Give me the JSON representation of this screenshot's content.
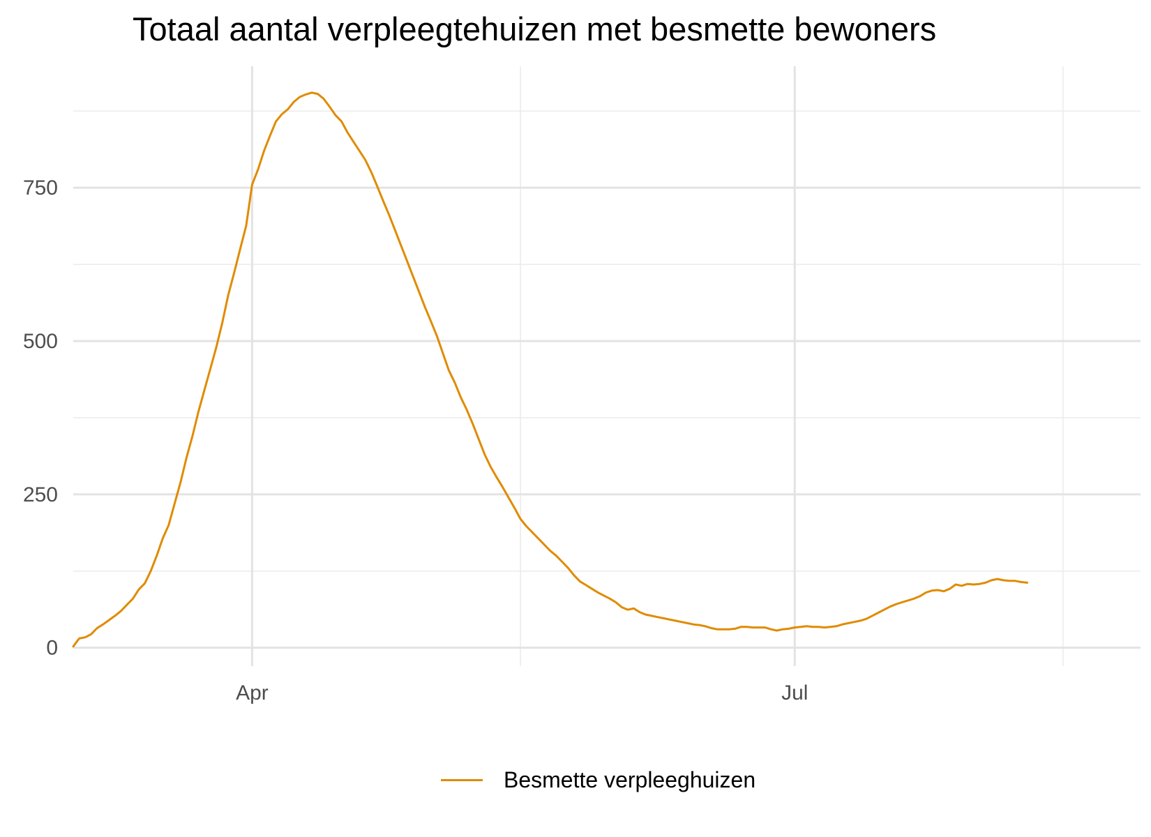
{
  "chart_data": {
    "type": "line",
    "title": "Totaal aantal verpleegtehuizen met besmette bewoners",
    "xlabel": "",
    "ylabel": "",
    "ylim": [
      -30,
      948
    ],
    "x_date_range": [
      "2020-03-02",
      "2020-08-28"
    ],
    "y_ticks": [
      0,
      250,
      500,
      750
    ],
    "y_minor_ticks": [
      125,
      375,
      625,
      875
    ],
    "x_ticks": [
      {
        "date": "2020-04-01",
        "label": "Apr"
      },
      {
        "date": "2020-07-01",
        "label": "Jul"
      }
    ],
    "x_minor_ticks": [
      "2020-05-16",
      "2020-08-15"
    ],
    "grid": true,
    "legend": "bottom",
    "series": [
      {
        "name": "Besmette verpleeghuizen",
        "color": "#E08B00",
        "points": [
          [
            "2020-03-02",
            2
          ],
          [
            "2020-03-03",
            15
          ],
          [
            "2020-03-04",
            17
          ],
          [
            "2020-03-05",
            22
          ],
          [
            "2020-03-06",
            32
          ],
          [
            "2020-03-07",
            38
          ],
          [
            "2020-03-08",
            45
          ],
          [
            "2020-03-09",
            52
          ],
          [
            "2020-03-10",
            60
          ],
          [
            "2020-03-11",
            70
          ],
          [
            "2020-03-12",
            80
          ],
          [
            "2020-03-13",
            95
          ],
          [
            "2020-03-14",
            105
          ],
          [
            "2020-03-15",
            125
          ],
          [
            "2020-03-16",
            150
          ],
          [
            "2020-03-17",
            178
          ],
          [
            "2020-03-18",
            200
          ],
          [
            "2020-03-19",
            235
          ],
          [
            "2020-03-20",
            270
          ],
          [
            "2020-03-21",
            310
          ],
          [
            "2020-03-22",
            345
          ],
          [
            "2020-03-23",
            385
          ],
          [
            "2020-03-24",
            420
          ],
          [
            "2020-03-25",
            455
          ],
          [
            "2020-03-26",
            490
          ],
          [
            "2020-03-27",
            530
          ],
          [
            "2020-03-28",
            575
          ],
          [
            "2020-03-29",
            612
          ],
          [
            "2020-03-30",
            650
          ],
          [
            "2020-03-31",
            688
          ],
          [
            "2020-04-01",
            755
          ],
          [
            "2020-04-02",
            780
          ],
          [
            "2020-04-03",
            810
          ],
          [
            "2020-04-04",
            835
          ],
          [
            "2020-04-05",
            858
          ],
          [
            "2020-04-06",
            870
          ],
          [
            "2020-04-07",
            878
          ],
          [
            "2020-04-08",
            890
          ],
          [
            "2020-04-09",
            898
          ],
          [
            "2020-04-10",
            902
          ],
          [
            "2020-04-11",
            905
          ],
          [
            "2020-04-12",
            903
          ],
          [
            "2020-04-13",
            895
          ],
          [
            "2020-04-14",
            882
          ],
          [
            "2020-04-15",
            868
          ],
          [
            "2020-04-16",
            858
          ],
          [
            "2020-04-17",
            840
          ],
          [
            "2020-04-18",
            825
          ],
          [
            "2020-04-19",
            810
          ],
          [
            "2020-04-20",
            795
          ],
          [
            "2020-04-21",
            775
          ],
          [
            "2020-04-22",
            752
          ],
          [
            "2020-04-23",
            728
          ],
          [
            "2020-04-24",
            705
          ],
          [
            "2020-04-25",
            680
          ],
          [
            "2020-04-26",
            655
          ],
          [
            "2020-04-27",
            630
          ],
          [
            "2020-04-28",
            605
          ],
          [
            "2020-04-29",
            580
          ],
          [
            "2020-04-30",
            555
          ],
          [
            "2020-05-01",
            532
          ],
          [
            "2020-05-02",
            508
          ],
          [
            "2020-05-03",
            480
          ],
          [
            "2020-05-04",
            452
          ],
          [
            "2020-05-05",
            432
          ],
          [
            "2020-05-06",
            408
          ],
          [
            "2020-05-07",
            388
          ],
          [
            "2020-05-08",
            365
          ],
          [
            "2020-05-09",
            340
          ],
          [
            "2020-05-10",
            315
          ],
          [
            "2020-05-11",
            295
          ],
          [
            "2020-05-12",
            278
          ],
          [
            "2020-05-13",
            262
          ],
          [
            "2020-05-14",
            245
          ],
          [
            "2020-05-15",
            228
          ],
          [
            "2020-05-16",
            210
          ],
          [
            "2020-05-17",
            198
          ],
          [
            "2020-05-18",
            188
          ],
          [
            "2020-05-19",
            178
          ],
          [
            "2020-05-20",
            168
          ],
          [
            "2020-05-21",
            158
          ],
          [
            "2020-05-22",
            150
          ],
          [
            "2020-05-23",
            140
          ],
          [
            "2020-05-24",
            130
          ],
          [
            "2020-05-25",
            118
          ],
          [
            "2020-05-26",
            108
          ],
          [
            "2020-05-27",
            102
          ],
          [
            "2020-05-28",
            96
          ],
          [
            "2020-05-29",
            90
          ],
          [
            "2020-05-30",
            85
          ],
          [
            "2020-05-31",
            80
          ],
          [
            "2020-06-01",
            74
          ],
          [
            "2020-06-02",
            66
          ],
          [
            "2020-06-03",
            62
          ],
          [
            "2020-06-04",
            64
          ],
          [
            "2020-06-05",
            58
          ],
          [
            "2020-06-06",
            54
          ],
          [
            "2020-06-07",
            52
          ],
          [
            "2020-06-08",
            50
          ],
          [
            "2020-06-09",
            48
          ],
          [
            "2020-06-10",
            46
          ],
          [
            "2020-06-11",
            44
          ],
          [
            "2020-06-12",
            42
          ],
          [
            "2020-06-13",
            40
          ],
          [
            "2020-06-14",
            38
          ],
          [
            "2020-06-15",
            37
          ],
          [
            "2020-06-16",
            35
          ],
          [
            "2020-06-17",
            32
          ],
          [
            "2020-06-18",
            30
          ],
          [
            "2020-06-19",
            30
          ],
          [
            "2020-06-20",
            30
          ],
          [
            "2020-06-21",
            31
          ],
          [
            "2020-06-22",
            34
          ],
          [
            "2020-06-23",
            34
          ],
          [
            "2020-06-24",
            33
          ],
          [
            "2020-06-25",
            33
          ],
          [
            "2020-06-26",
            33
          ],
          [
            "2020-06-27",
            30
          ],
          [
            "2020-06-28",
            28
          ],
          [
            "2020-06-29",
            30
          ],
          [
            "2020-06-30",
            31
          ],
          [
            "2020-07-01",
            33
          ],
          [
            "2020-07-02",
            34
          ],
          [
            "2020-07-03",
            35
          ],
          [
            "2020-07-04",
            34
          ],
          [
            "2020-07-05",
            34
          ],
          [
            "2020-07-06",
            33
          ],
          [
            "2020-07-07",
            34
          ],
          [
            "2020-07-08",
            35
          ],
          [
            "2020-07-09",
            38
          ],
          [
            "2020-07-10",
            40
          ],
          [
            "2020-07-11",
            42
          ],
          [
            "2020-07-12",
            44
          ],
          [
            "2020-07-13",
            47
          ],
          [
            "2020-07-14",
            52
          ],
          [
            "2020-07-15",
            57
          ],
          [
            "2020-07-16",
            62
          ],
          [
            "2020-07-17",
            67
          ],
          [
            "2020-07-18",
            71
          ],
          [
            "2020-07-19",
            74
          ],
          [
            "2020-07-20",
            77
          ],
          [
            "2020-07-21",
            80
          ],
          [
            "2020-07-22",
            84
          ],
          [
            "2020-07-23",
            90
          ],
          [
            "2020-07-24",
            93
          ],
          [
            "2020-07-25",
            94
          ],
          [
            "2020-07-26",
            92
          ],
          [
            "2020-07-27",
            96
          ],
          [
            "2020-07-28",
            103
          ],
          [
            "2020-07-29",
            101
          ],
          [
            "2020-07-30",
            104
          ],
          [
            "2020-07-31",
            103
          ],
          [
            "2020-08-01",
            104
          ],
          [
            "2020-08-02",
            106
          ],
          [
            "2020-08-03",
            110
          ],
          [
            "2020-08-04",
            112
          ],
          [
            "2020-08-05",
            110
          ],
          [
            "2020-08-06",
            109
          ],
          [
            "2020-08-07",
            109
          ],
          [
            "2020-08-08",
            107
          ],
          [
            "2020-08-09",
            106
          ]
        ]
      }
    ]
  }
}
